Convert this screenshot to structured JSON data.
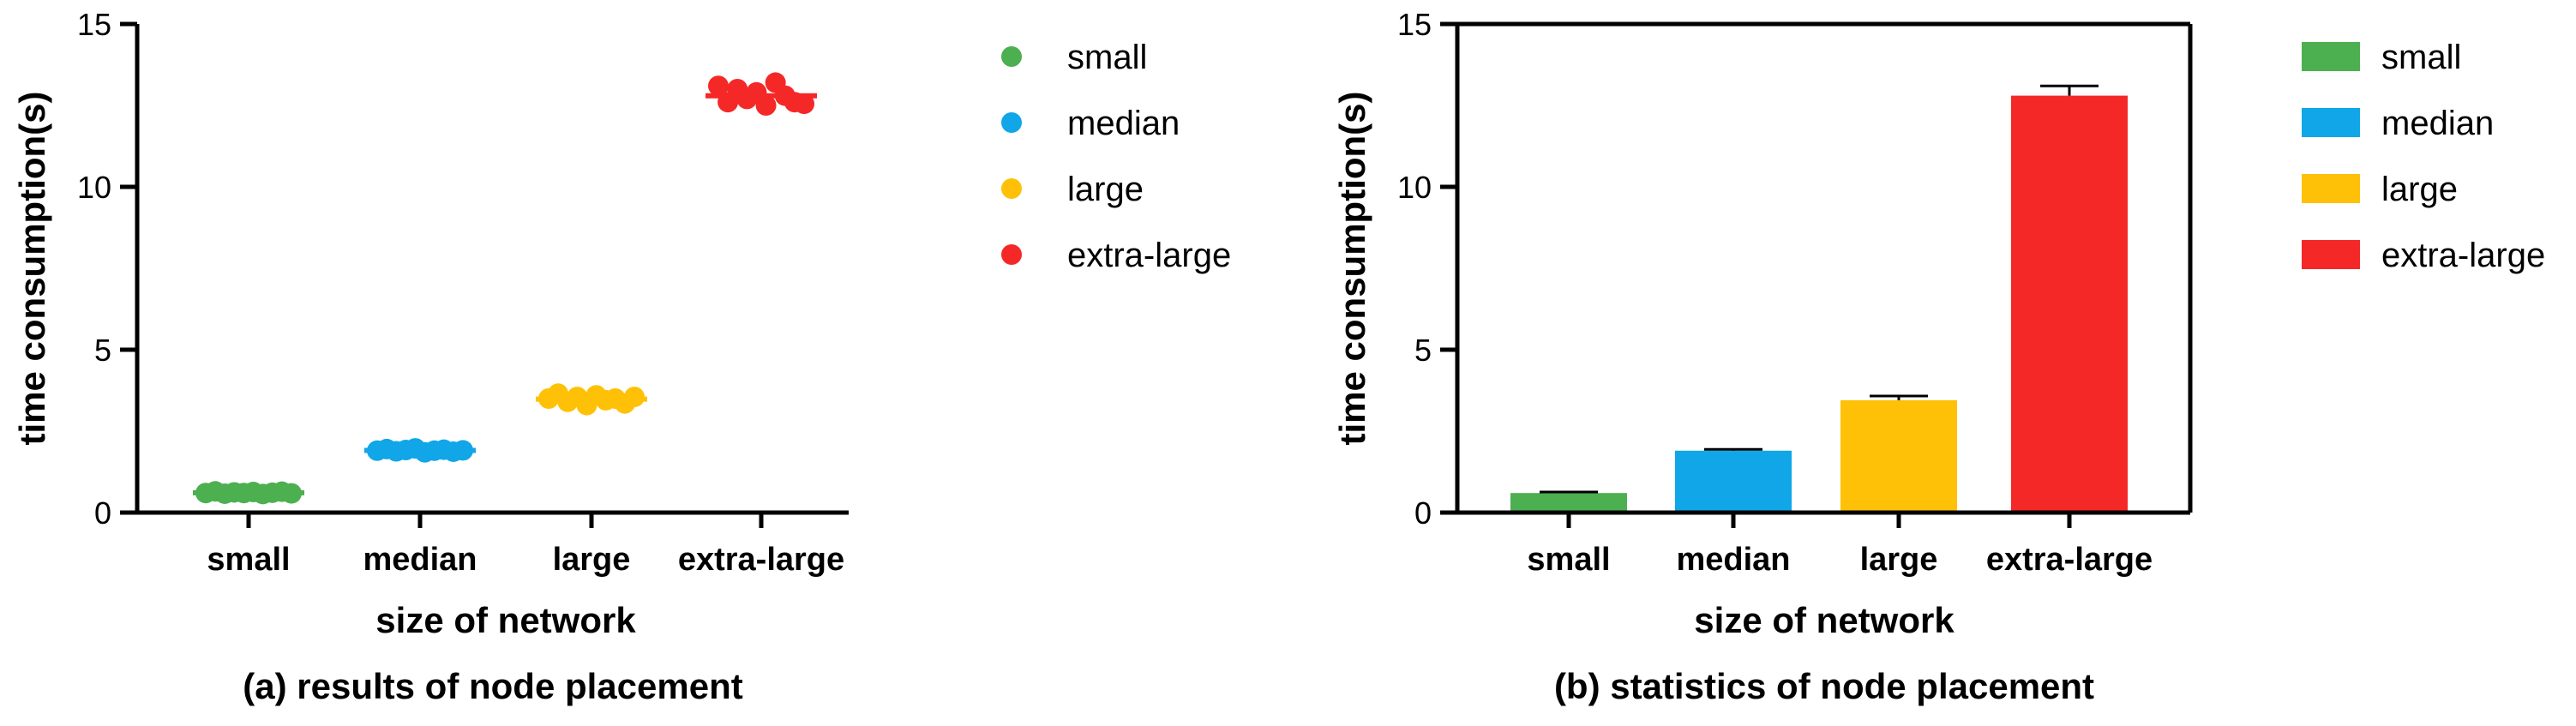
{
  "chart_data": [
    {
      "type": "scatter",
      "caption": "(a) results of node placement",
      "xlabel": "size of network",
      "ylabel": "time consumption(s)",
      "ylim": [
        0,
        15
      ],
      "yticks": [
        0,
        5,
        10,
        15
      ],
      "categories": [
        "small",
        "median",
        "large",
        "extra-large"
      ],
      "legend": [
        "small",
        "median",
        "large",
        "extra-large"
      ],
      "series": [
        {
          "name": "small",
          "color": "#4caf50",
          "values": [
            0.6,
            0.65,
            0.58,
            0.62,
            0.6,
            0.63,
            0.57,
            0.61,
            0.64,
            0.59
          ]
        },
        {
          "name": "median",
          "color": "#10a6e8",
          "values": [
            1.9,
            1.95,
            1.88,
            1.92,
            1.97,
            1.85,
            1.9,
            1.93,
            1.87,
            1.91
          ]
        },
        {
          "name": "large",
          "color": "#ffc107",
          "values": [
            3.5,
            3.65,
            3.4,
            3.55,
            3.3,
            3.6,
            3.45,
            3.5,
            3.35,
            3.55
          ]
        },
        {
          "name": "extra-large",
          "color": "#f52828",
          "values": [
            13.1,
            12.6,
            13.0,
            12.7,
            12.9,
            12.5,
            13.2,
            12.8,
            12.6,
            12.55
          ]
        }
      ],
      "mean_line": true
    },
    {
      "type": "bar",
      "caption": "(b) statistics of node placement",
      "xlabel": "size of network",
      "ylabel": "time consumption(s)",
      "ylim": [
        0,
        15
      ],
      "yticks": [
        0,
        5,
        10,
        15
      ],
      "categories": [
        "small",
        "median",
        "large",
        "extra-large"
      ],
      "legend": [
        "small",
        "median",
        "large",
        "extra-large"
      ],
      "values": [
        0.6,
        1.9,
        3.45,
        12.8
      ],
      "errors": [
        0.03,
        0.04,
        0.13,
        0.3
      ],
      "colors": [
        "#4caf50",
        "#10a6e8",
        "#ffc107",
        "#f52828"
      ]
    }
  ]
}
